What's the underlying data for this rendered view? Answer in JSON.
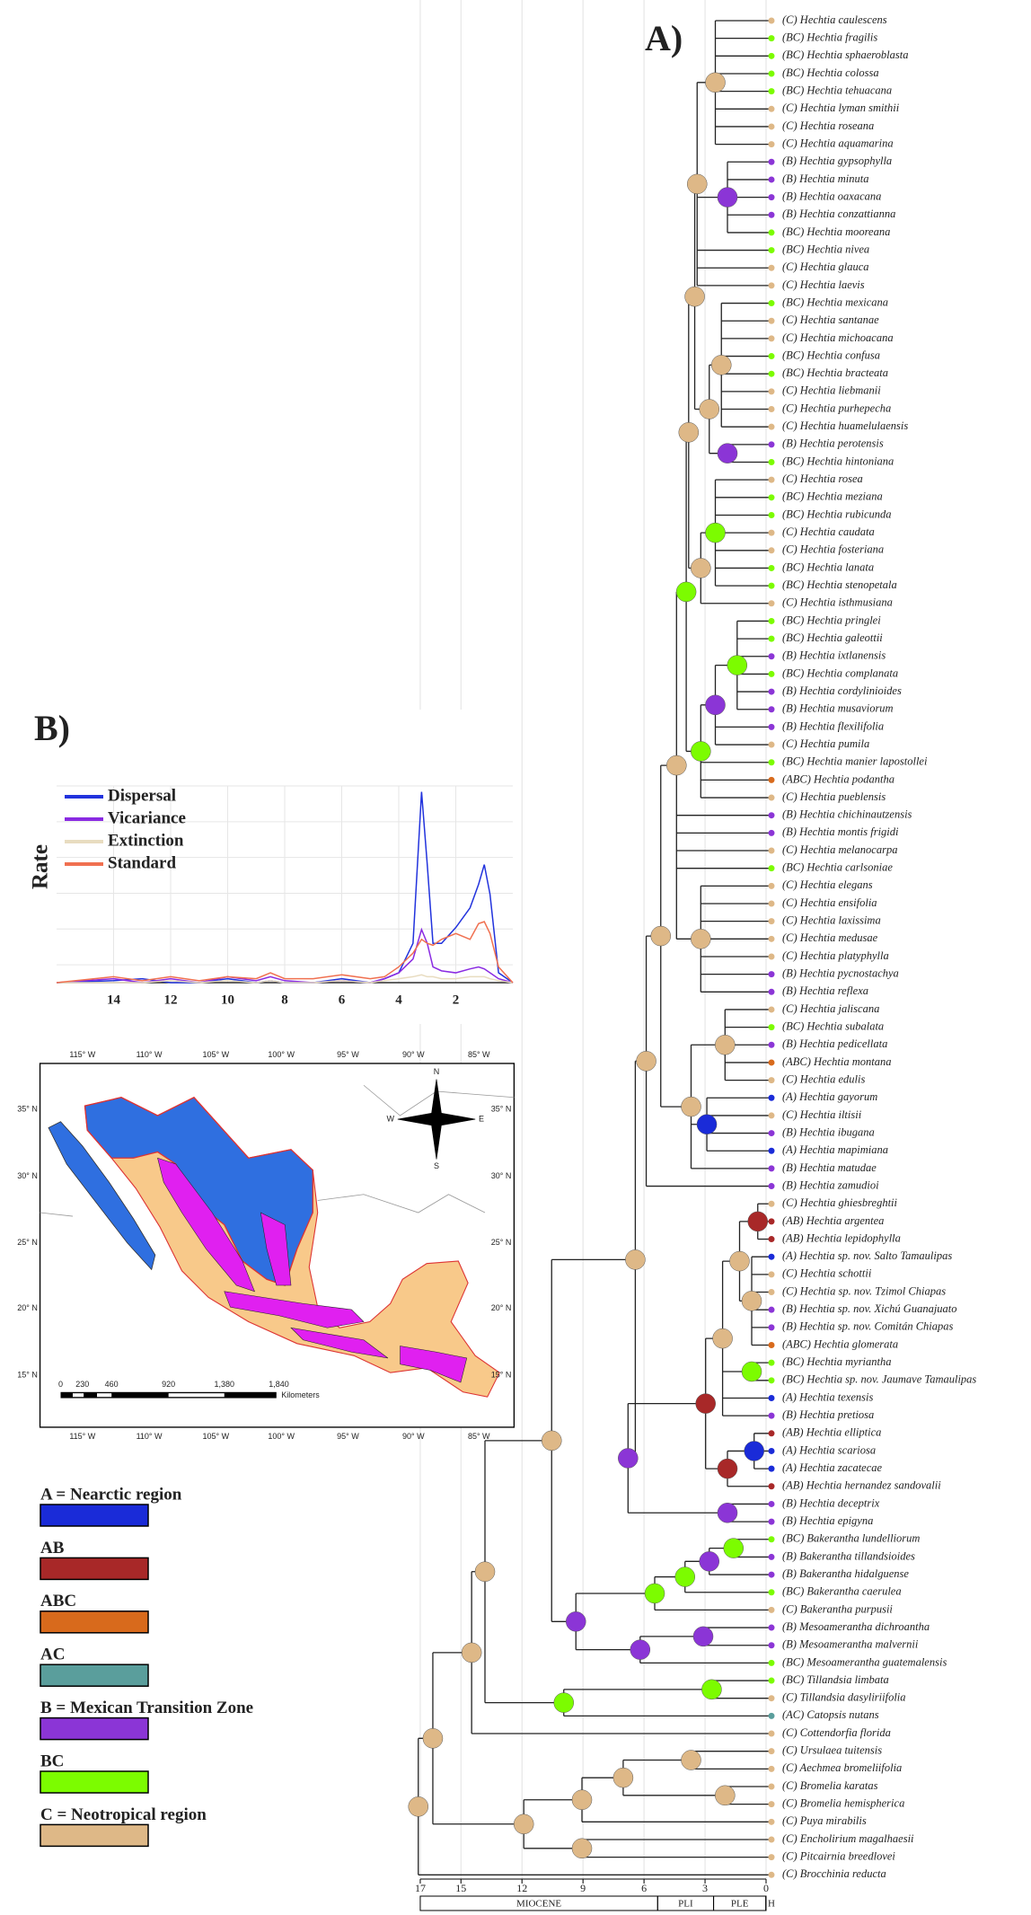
{
  "panel_a": {
    "label": "A)",
    "tips": [
      "(C) Hechtia caulescens",
      "(BC) Hechtia fragilis",
      "(BC) Hechtia sphaeroblasta",
      "(BC) Hechtia colossa",
      "(BC) Hechtia tehuacana",
      "(C) Hechtia lyman smithii",
      "(C) Hechtia roseana",
      "(C) Hechtia aquamarina",
      "(B) Hechtia gypsophylla",
      "(B) Hechtia minuta",
      "(B) Hechtia oaxacana",
      "(B) Hechtia conzattianna",
      "(BC) Hechtia mooreana",
      "(BC) Hechtia nivea",
      "(C) Hechtia glauca",
      "(C) Hechtia laevis",
      "(BC) Hechtia mexicana",
      "(C) Hechtia santanae",
      "(C) Hechtia michoacana",
      "(BC) Hechtia confusa",
      "(BC) Hechtia bracteata",
      "(C) Hechtia liebmanii",
      "(C) Hechtia purhepecha",
      "(C) Hechtia huamelulaensis",
      "(B) Hechtia perotensis",
      "(BC) Hechtia hintoniana",
      "(C) Hechtia rosea",
      "(BC) Hechtia meziana",
      "(BC) Hechtia rubicunda",
      "(C) Hechtia caudata",
      "(C) Hechtia fosteriana",
      "(BC) Hechtia lanata",
      "(BC) Hechtia stenopetala",
      "(C) Hechtia isthmusiana",
      "(BC) Hechtia pringlei",
      "(BC) Hechtia galeottii",
      "(B) Hechtia ixtlanensis",
      "(BC) Hechtia complanata",
      "(B) Hechtia cordylinioides",
      "(B) Hechtia musaviorum",
      "(B) Hechtia flexilifolia",
      "(C) Hechtia pumila",
      "(BC) Hechtia manier lapostollei",
      "(ABC) Hechtia podantha",
      "(C) Hechtia pueblensis",
      "(B) Hechtia chichinautzensis",
      "(B) Hechtia montis frigidi",
      "(C) Hechtia melanocarpa",
      "(BC) Hechtia carlsoniae",
      "(C) Hechtia elegans",
      "(C) Hechtia ensifolia",
      "(C) Hechtia laxissima",
      "(C) Hechtia medusae",
      "(C) Hechtia platyphylla",
      "(B) Hechtia pycnostachya",
      "(B) Hechtia reflexa",
      "(C) Hechtia jaliscana",
      "(BC) Hechtia subalata",
      "(B) Hechtia pedicellata",
      "(ABC) Hechtia montana",
      "(C) Hechtia edulis",
      "(A) Hechtia gayorum",
      "(C) Hechtia iltisii",
      "(B) Hechtia ibugana",
      "(A) Hechtia mapimiana",
      "(B) Hechtia matudae",
      "(B) Hechtia zamudioi",
      "(C) Hechtia ghiesbreghtii",
      "(AB) Hechtia argentea",
      "(AB) Hechtia lepidophylla",
      "(A) Hechtia sp. nov. Salto Tamaulipas",
      "(C) Hechtia schottii",
      "(C) Hechtia sp. nov. Tzimol Chiapas",
      "(B) Hechtia sp. nov. Xichú Guanajuato",
      "(B) Hechtia sp. nov. Comitán Chiapas",
      "(ABC) Hechtia glomerata",
      "(BC) Hechtia myriantha",
      "(BC) Hechtia sp. nov. Jaumave Tamaulipas",
      "(A) Hechtia texensis",
      "(B) Hechtia pretiosa",
      "(AB) Hechtia elliptica",
      "(A) Hechtia scariosa",
      "(A) Hechtia zacatecae",
      "(AB) Hechtia hernandez sandovalii",
      "(B) Hechtia deceptrix",
      "(B) Hechtia epigyna",
      "(BC) Bakerantha lundelliorum",
      "(B) Bakerantha tillandsioides",
      "(B) Bakerantha hidalguense",
      "(BC) Bakerantha caerulea",
      "(C) Bakerantha purpusii",
      "(B) Mesoamerantha dichroantha",
      "(B) Mesoamerantha malvernii",
      "(BC) Mesoamerantha guatemalensis",
      "(BC) Tillandsia limbata",
      "(C) Tillandsia dasyliriifolia",
      "(AC) Catopsis nutans",
      "(C) Cottendorfia florida",
      "(C) Ursulaea tuitensis",
      "(C) Aechmea bromeliifolia",
      "(C) Bromelia karatas",
      "(C) Bromelia hemispherica",
      "(C) Puya mirabilis",
      "(C) Encholirium magalhaesii",
      "(C) Pitcairnia breedlovei",
      "(C) Brocchinia reducta"
    ],
    "time_ticks": [
      17,
      15,
      12,
      9,
      6,
      3,
      0
    ],
    "epochs": [
      {
        "label": "MIOCENE",
        "start": 17,
        "end": 5.33
      },
      {
        "label": "PLI",
        "start": 5.33,
        "end": 2.58
      },
      {
        "label": "PLE",
        "start": 2.58,
        "end": 0.0117
      },
      {
        "label": "H",
        "start": 0.0117,
        "end": 0
      }
    ]
  },
  "chart_data": {
    "type": "line",
    "label": "B)",
    "ylabel": "Rate",
    "x": [
      16,
      14,
      13,
      12,
      11,
      10,
      9,
      8.5,
      8,
      7,
      6,
      5,
      4.5,
      4,
      3.5,
      3.2,
      3,
      2.8,
      2.5,
      2,
      1.5,
      1.2,
      1,
      0.8,
      0.5,
      0
    ],
    "series": [
      {
        "name": "Dispersal",
        "color": "#2233dd",
        "values": [
          0,
          0.01,
          0.02,
          0,
          0,
          0.02,
          0,
          0.01,
          0,
          0,
          0.02,
          0,
          0.02,
          0.05,
          0.2,
          0.97,
          0.6,
          0.2,
          0.2,
          0.28,
          0.38,
          0.5,
          0.6,
          0.45,
          0.05,
          0
        ]
      },
      {
        "name": "Vicariance",
        "color": "#8a2be2",
        "values": [
          0,
          0.02,
          0,
          0.02,
          0,
          0.03,
          0.01,
          0.03,
          0.01,
          0,
          0.01,
          0,
          0.02,
          0.05,
          0.12,
          0.27,
          0.2,
          0.08,
          0.06,
          0.05,
          0.07,
          0.08,
          0.07,
          0.05,
          0.02,
          0
        ]
      },
      {
        "name": "Extinction",
        "color": "#e8dcc0",
        "values": [
          0,
          0,
          0,
          0.01,
          0,
          0.01,
          0,
          0.01,
          0,
          0,
          0.01,
          0,
          0.01,
          0.02,
          0.03,
          0.04,
          0.03,
          0.03,
          0.02,
          0.02,
          0.03,
          0.03,
          0.03,
          0.02,
          0.01,
          0
        ]
      },
      {
        "name": "Standard",
        "color": "#f07050",
        "values": [
          0,
          0.03,
          0.01,
          0.03,
          0.01,
          0.03,
          0.02,
          0.05,
          0.02,
          0.02,
          0.04,
          0.02,
          0.03,
          0.08,
          0.15,
          0.22,
          0.2,
          0.19,
          0.22,
          0.25,
          0.22,
          0.3,
          0.31,
          0.25,
          0.08,
          0
        ]
      }
    ],
    "xlim": [
      16,
      0
    ],
    "ylim": [
      0,
      1
    ],
    "xticks": [
      14,
      12,
      10,
      8,
      6,
      4,
      2
    ],
    "grid": true,
    "legend": "upper-left"
  },
  "map": {
    "lon_labels": [
      "115° W",
      "110° W",
      "105° W",
      "100° W",
      "95° W",
      "90° W",
      "85° W"
    ],
    "lat_labels": [
      "35° N",
      "30° N",
      "25° N",
      "20° N",
      "15° N"
    ],
    "scale_labels": [
      "0",
      "230",
      "460",
      "920",
      "1,380",
      "1,840"
    ],
    "scale_unit": "Kilometers",
    "compass": [
      "N",
      "E",
      "S",
      "W"
    ]
  },
  "legend": {
    "items": [
      {
        "label": "A = Nearctic region",
        "color": "#1a2bd8"
      },
      {
        "label": "AB",
        "color": "#a82828"
      },
      {
        "label": "ABC",
        "color": "#d86a1c"
      },
      {
        "label": "AC",
        "color": "#5a9e9c"
      },
      {
        "label": "B = Mexican Transition Zone",
        "color": "#8b35d6"
      },
      {
        "label": "BC",
        "color": "#7cfc00"
      },
      {
        "label": "C = Neotropical region",
        "color": "#deb887"
      }
    ]
  }
}
